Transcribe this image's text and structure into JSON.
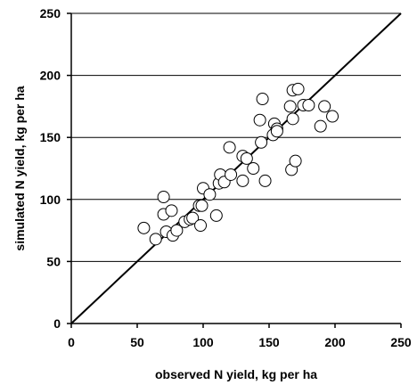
{
  "chart_data": {
    "type": "scatter",
    "title": "",
    "xlabel": "observed N yield, kg per ha",
    "ylabel": "simulated N yield, kg per ha",
    "xlim": [
      0,
      250
    ],
    "ylim": [
      0,
      250
    ],
    "xticks": [
      "0",
      "50",
      "100",
      "150",
      "200",
      "250"
    ],
    "yticks": [
      "0",
      "50",
      "100",
      "150",
      "200",
      "250"
    ],
    "grid": "horizontal",
    "reference_line": {
      "type": "1:1",
      "from": [
        0,
        0
      ],
      "to": [
        250,
        250
      ]
    },
    "marker": "open-circle",
    "points": [
      [
        55,
        77
      ],
      [
        64,
        68
      ],
      [
        70,
        102
      ],
      [
        70,
        88
      ],
      [
        72,
        74
      ],
      [
        76,
        91
      ],
      [
        77,
        71
      ],
      [
        80,
        75
      ],
      [
        86,
        82
      ],
      [
        90,
        84
      ],
      [
        92,
        85
      ],
      [
        97,
        95
      ],
      [
        98,
        79
      ],
      [
        99,
        95
      ],
      [
        100,
        109
      ],
      [
        105,
        104
      ],
      [
        110,
        87
      ],
      [
        112,
        113
      ],
      [
        113,
        120
      ],
      [
        116,
        114
      ],
      [
        120,
        142
      ],
      [
        121,
        120
      ],
      [
        130,
        135
      ],
      [
        130,
        115
      ],
      [
        133,
        133
      ],
      [
        138,
        125
      ],
      [
        143,
        164
      ],
      [
        144,
        146
      ],
      [
        145,
        181
      ],
      [
        147,
        115
      ],
      [
        153,
        152
      ],
      [
        154,
        161
      ],
      [
        156,
        157
      ],
      [
        156,
        155
      ],
      [
        166,
        175
      ],
      [
        168,
        165
      ],
      [
        167,
        124
      ],
      [
        168,
        188
      ],
      [
        170,
        131
      ],
      [
        172,
        189
      ],
      [
        176,
        176
      ],
      [
        180,
        176
      ],
      [
        189,
        159
      ],
      [
        192,
        175
      ],
      [
        198,
        167
      ]
    ]
  }
}
